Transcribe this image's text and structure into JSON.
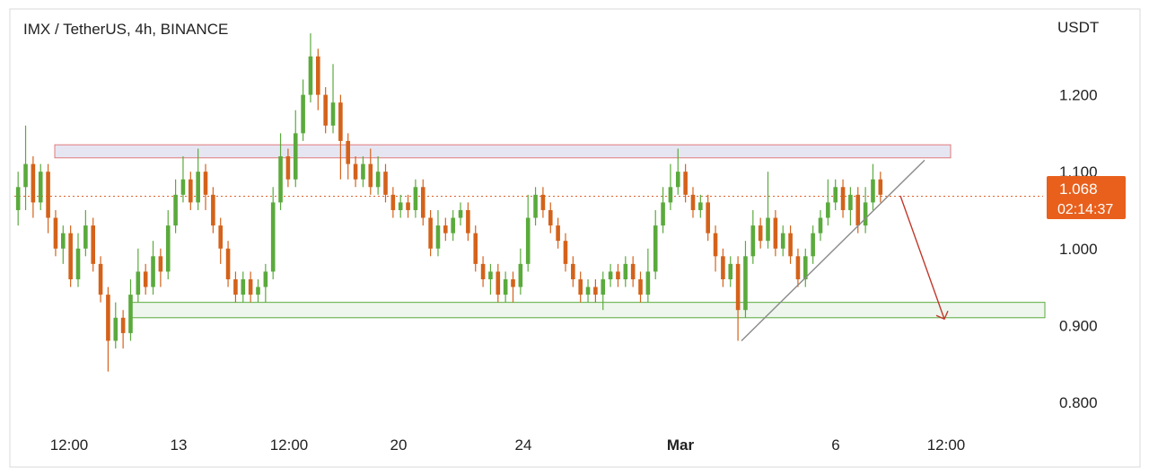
{
  "chart_data": {
    "type": "candlestick",
    "title": "IMX / TetherUS, 4h, BINANCE",
    "currency": "USDT",
    "y_ticks": [
      "1.200",
      "1.100",
      "1.000",
      "0.900",
      "0.800"
    ],
    "y_tick_values": [
      1.2,
      1.1,
      1.0,
      0.9,
      0.8
    ],
    "x_ticks": [
      "12:00",
      "13",
      "12:00",
      "20",
      "24",
      "Mar",
      "6",
      "12:00"
    ],
    "ylim": [
      0.745,
      1.3
    ],
    "last_price": "1.068",
    "last_price_value": 1.068,
    "countdown": "02:14:37",
    "grid": false,
    "colors": {
      "up": "#5aaa3c",
      "down": "#d4621a",
      "resistance_zone": "#e07a7a",
      "support_zone": "#5aaa3c",
      "trendline": "#8a8a8a",
      "projection_arrow": "#c0392b",
      "price_label_bg": "#e8601c"
    },
    "resistance_zone": [
      1.118,
      1.135
    ],
    "support_zone": [
      0.91,
      0.93
    ],
    "trendline": [
      {
        "price": 0.88
      },
      {
        "price": 1.115
      }
    ],
    "projection_target": 0.92,
    "candles": [
      [
        1.05,
        1.08,
        1.1,
        1.03
      ],
      [
        1.08,
        1.11,
        1.16,
        1.05
      ],
      [
        1.11,
        1.06,
        1.12,
        1.04
      ],
      [
        1.06,
        1.1,
        1.11,
        1.05
      ],
      [
        1.1,
        1.04,
        1.11,
        1.02
      ],
      [
        1.04,
        1.0,
        1.05,
        0.99
      ],
      [
        1.0,
        1.02,
        1.03,
        0.98
      ],
      [
        1.02,
        0.96,
        1.03,
        0.95
      ],
      [
        0.96,
        1.0,
        1.02,
        0.95
      ],
      [
        1.0,
        1.03,
        1.05,
        0.99
      ],
      [
        1.03,
        0.98,
        1.04,
        0.97
      ],
      [
        0.98,
        0.94,
        0.99,
        0.93
      ],
      [
        0.94,
        0.88,
        0.95,
        0.84
      ],
      [
        0.88,
        0.91,
        0.93,
        0.87
      ],
      [
        0.91,
        0.89,
        0.92,
        0.87
      ],
      [
        0.89,
        0.94,
        0.96,
        0.88
      ],
      [
        0.94,
        0.97,
        1.0,
        0.93
      ],
      [
        0.97,
        0.95,
        0.98,
        0.94
      ],
      [
        0.95,
        0.99,
        1.01,
        0.94
      ],
      [
        0.99,
        0.97,
        1.0,
        0.95
      ],
      [
        0.97,
        1.03,
        1.05,
        0.96
      ],
      [
        1.03,
        1.07,
        1.09,
        1.02
      ],
      [
        1.07,
        1.09,
        1.12,
        1.06
      ],
      [
        1.09,
        1.06,
        1.1,
        1.05
      ],
      [
        1.06,
        1.1,
        1.13,
        1.05
      ],
      [
        1.1,
        1.07,
        1.11,
        1.05
      ],
      [
        1.07,
        1.03,
        1.08,
        1.02
      ],
      [
        1.03,
        1.0,
        1.04,
        0.98
      ],
      [
        1.0,
        0.96,
        1.01,
        0.95
      ],
      [
        0.96,
        0.94,
        0.97,
        0.93
      ],
      [
        0.94,
        0.96,
        0.97,
        0.93
      ],
      [
        0.96,
        0.94,
        0.97,
        0.93
      ],
      [
        0.94,
        0.95,
        0.96,
        0.93
      ],
      [
        0.95,
        0.97,
        0.98,
        0.93
      ],
      [
        0.97,
        1.06,
        1.08,
        0.96
      ],
      [
        1.06,
        1.12,
        1.15,
        1.05
      ],
      [
        1.12,
        1.09,
        1.13,
        1.08
      ],
      [
        1.09,
        1.15,
        1.18,
        1.08
      ],
      [
        1.15,
        1.2,
        1.22,
        1.14
      ],
      [
        1.2,
        1.25,
        1.28,
        1.19
      ],
      [
        1.25,
        1.2,
        1.26,
        1.18
      ],
      [
        1.2,
        1.16,
        1.21,
        1.15
      ],
      [
        1.16,
        1.19,
        1.24,
        1.15
      ],
      [
        1.19,
        1.14,
        1.2,
        1.09
      ],
      [
        1.14,
        1.11,
        1.15,
        1.09
      ],
      [
        1.11,
        1.09,
        1.12,
        1.08
      ],
      [
        1.09,
        1.11,
        1.12,
        1.08
      ],
      [
        1.11,
        1.08,
        1.13,
        1.07
      ],
      [
        1.08,
        1.1,
        1.12,
        1.07
      ],
      [
        1.1,
        1.07,
        1.11,
        1.06
      ],
      [
        1.07,
        1.05,
        1.08,
        1.04
      ],
      [
        1.05,
        1.06,
        1.07,
        1.04
      ],
      [
        1.06,
        1.05,
        1.07,
        1.04
      ],
      [
        1.05,
        1.08,
        1.09,
        1.04
      ],
      [
        1.08,
        1.04,
        1.09,
        1.03
      ],
      [
        1.04,
        1.0,
        1.05,
        0.99
      ],
      [
        1.0,
        1.03,
        1.05,
        0.99
      ],
      [
        1.03,
        1.02,
        1.04,
        1.01
      ],
      [
        1.02,
        1.04,
        1.05,
        1.01
      ],
      [
        1.04,
        1.05,
        1.06,
        1.03
      ],
      [
        1.05,
        1.02,
        1.06,
        1.01
      ],
      [
        1.02,
        0.98,
        1.03,
        0.97
      ],
      [
        0.98,
        0.96,
        0.99,
        0.95
      ],
      [
        0.96,
        0.97,
        0.98,
        0.94
      ],
      [
        0.97,
        0.94,
        0.98,
        0.93
      ],
      [
        0.94,
        0.96,
        0.97,
        0.93
      ],
      [
        0.96,
        0.95,
        0.97,
        0.93
      ],
      [
        0.95,
        0.98,
        1.0,
        0.94
      ],
      [
        0.98,
        1.04,
        1.07,
        0.97
      ],
      [
        1.04,
        1.07,
        1.08,
        1.03
      ],
      [
        1.07,
        1.05,
        1.08,
        1.04
      ],
      [
        1.05,
        1.03,
        1.06,
        1.02
      ],
      [
        1.03,
        1.01,
        1.04,
        1.0
      ],
      [
        1.01,
        0.98,
        1.02,
        0.97
      ],
      [
        0.98,
        0.96,
        0.99,
        0.95
      ],
      [
        0.96,
        0.94,
        0.97,
        0.93
      ],
      [
        0.94,
        0.95,
        0.96,
        0.93
      ],
      [
        0.95,
        0.94,
        0.96,
        0.93
      ],
      [
        0.94,
        0.96,
        0.97,
        0.92
      ],
      [
        0.96,
        0.97,
        0.98,
        0.95
      ],
      [
        0.97,
        0.96,
        0.98,
        0.95
      ],
      [
        0.96,
        0.98,
        0.99,
        0.95
      ],
      [
        0.98,
        0.96,
        0.99,
        0.95
      ],
      [
        0.96,
        0.94,
        0.97,
        0.93
      ],
      [
        0.94,
        0.97,
        1.0,
        0.93
      ],
      [
        0.97,
        1.03,
        1.05,
        0.96
      ],
      [
        1.03,
        1.06,
        1.08,
        1.02
      ],
      [
        1.06,
        1.08,
        1.11,
        1.05
      ],
      [
        1.08,
        1.1,
        1.13,
        1.07
      ],
      [
        1.1,
        1.07,
        1.11,
        1.06
      ],
      [
        1.07,
        1.05,
        1.08,
        1.04
      ],
      [
        1.05,
        1.06,
        1.07,
        1.04
      ],
      [
        1.06,
        1.02,
        1.07,
        1.01
      ],
      [
        1.02,
        0.99,
        1.03,
        0.97
      ],
      [
        0.99,
        0.96,
        1.0,
        0.95
      ],
      [
        0.96,
        0.98,
        0.99,
        0.95
      ],
      [
        0.98,
        0.92,
        0.99,
        0.88
      ],
      [
        0.92,
        0.99,
        1.01,
        0.91
      ],
      [
        0.99,
        1.03,
        1.05,
        0.98
      ],
      [
        1.03,
        1.01,
        1.04,
        1.0
      ],
      [
        1.01,
        1.04,
        1.1,
        1.0
      ],
      [
        1.04,
        1.0,
        1.05,
        0.99
      ],
      [
        1.0,
        1.02,
        1.03,
        0.99
      ],
      [
        1.02,
        0.99,
        1.03,
        0.98
      ],
      [
        0.99,
        0.96,
        1.0,
        0.95
      ],
      [
        0.96,
        0.99,
        1.0,
        0.95
      ],
      [
        0.99,
        1.02,
        1.03,
        0.98
      ],
      [
        1.02,
        1.04,
        1.05,
        1.01
      ],
      [
        1.04,
        1.06,
        1.09,
        1.03
      ],
      [
        1.06,
        1.08,
        1.09,
        1.05
      ],
      [
        1.08,
        1.05,
        1.09,
        1.04
      ],
      [
        1.05,
        1.07,
        1.08,
        1.03
      ],
      [
        1.07,
        1.03,
        1.08,
        1.02
      ],
      [
        1.03,
        1.06,
        1.08,
        1.02
      ],
      [
        1.06,
        1.09,
        1.11,
        1.05
      ],
      [
        1.09,
        1.07,
        1.1,
        1.06
      ]
    ]
  }
}
